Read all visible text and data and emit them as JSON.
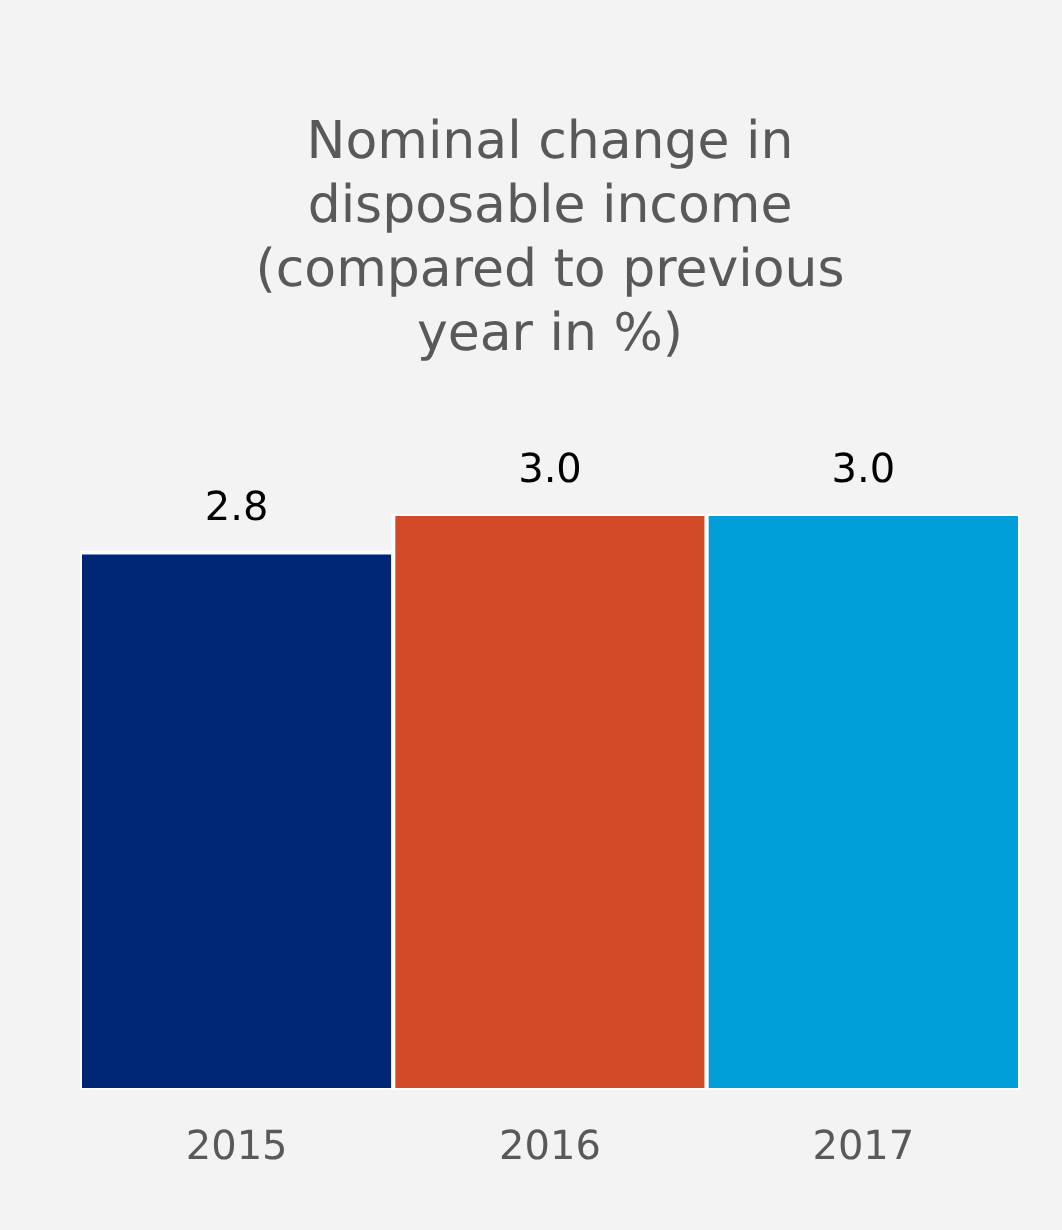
{
  "chart_data": {
    "type": "bar",
    "title": "Nominal change in disposable income (compared to previous year in %)",
    "categories": [
      "2015",
      "2016",
      "2017"
    ],
    "values": [
      2.8,
      3.0,
      3.0
    ],
    "colors": [
      "#002776",
      "#d24a27",
      "#009fda"
    ],
    "value_labels": [
      "2.8",
      "3.0",
      "3.0"
    ],
    "tick_labels": "x",
    "grid": false,
    "legend": false
  }
}
